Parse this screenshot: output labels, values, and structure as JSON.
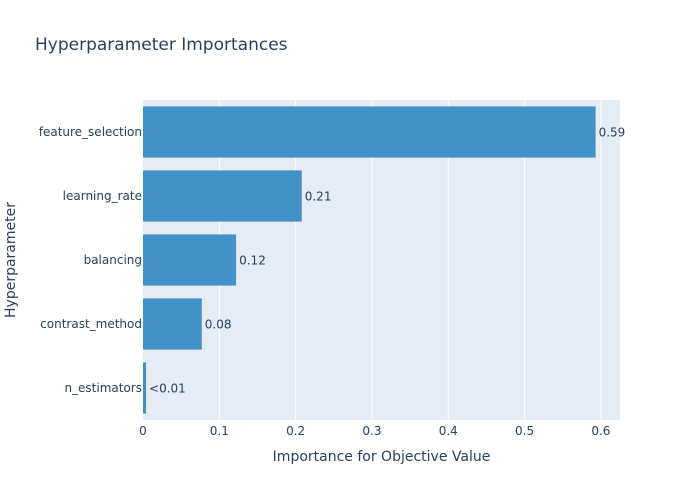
{
  "chart_data": {
    "type": "bar",
    "orientation": "horizontal",
    "title": "Hyperparameter Importances",
    "xlabel": "Importance for Objective Value",
    "ylabel": "Hyperparameter",
    "categories": [
      "feature_selection",
      "learning_rate",
      "balancing",
      "contrast_method",
      "n_estimators"
    ],
    "values": [
      0.593,
      0.208,
      0.122,
      0.077,
      0.004
    ],
    "data_labels": [
      "0.59",
      "0.21",
      "0.12",
      "0.08",
      "<0.01"
    ],
    "xlim": [
      0,
      0.625
    ],
    "xticks": [
      0,
      0.1,
      0.2,
      0.3,
      0.4,
      0.5,
      0.6
    ],
    "xtick_labels": [
      "0",
      "0.1",
      "0.2",
      "0.3",
      "0.4",
      "0.5",
      "0.6"
    ],
    "grid": true,
    "colors": {
      "bar": "#4292c6",
      "plot_background": "#e5ecf6",
      "grid": "#ffffff",
      "text": "#2a3f5f",
      "title": "#2a3f5f"
    }
  }
}
